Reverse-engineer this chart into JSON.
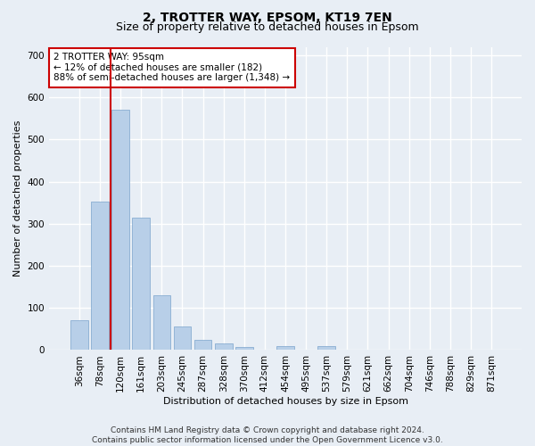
{
  "title1": "2, TROTTER WAY, EPSOM, KT19 7EN",
  "title2": "Size of property relative to detached houses in Epsom",
  "xlabel": "Distribution of detached houses by size in Epsom",
  "ylabel": "Number of detached properties",
  "categories": [
    "36sqm",
    "78sqm",
    "120sqm",
    "161sqm",
    "203sqm",
    "245sqm",
    "287sqm",
    "328sqm",
    "370sqm",
    "412sqm",
    "454sqm",
    "495sqm",
    "537sqm",
    "579sqm",
    "621sqm",
    "662sqm",
    "704sqm",
    "746sqm",
    "788sqm",
    "829sqm",
    "871sqm"
  ],
  "values": [
    70,
    352,
    570,
    315,
    130,
    57,
    25,
    15,
    8,
    0,
    10,
    0,
    10,
    0,
    0,
    0,
    0,
    0,
    0,
    0,
    0
  ],
  "bar_color": "#b8cfe8",
  "bar_edge_color": "#7ba4cc",
  "vline_color": "#cc0000",
  "vline_position": 1.5,
  "annotation_text": "2 TROTTER WAY: 95sqm\n← 12% of detached houses are smaller (182)\n88% of semi-detached houses are larger (1,348) →",
  "annotation_box_color": "#ffffff",
  "annotation_box_edge": "#cc0000",
  "ylim": [
    0,
    720
  ],
  "yticks": [
    0,
    100,
    200,
    300,
    400,
    500,
    600,
    700
  ],
  "footnote": "Contains HM Land Registry data © Crown copyright and database right 2024.\nContains public sector information licensed under the Open Government Licence v3.0.",
  "background_color": "#e8eef5",
  "plot_bg_color": "#e8eef5",
  "grid_color": "#ffffff",
  "title_fontsize": 10,
  "subtitle_fontsize": 9,
  "axis_label_fontsize": 8,
  "tick_fontsize": 7.5,
  "footnote_fontsize": 6.5
}
